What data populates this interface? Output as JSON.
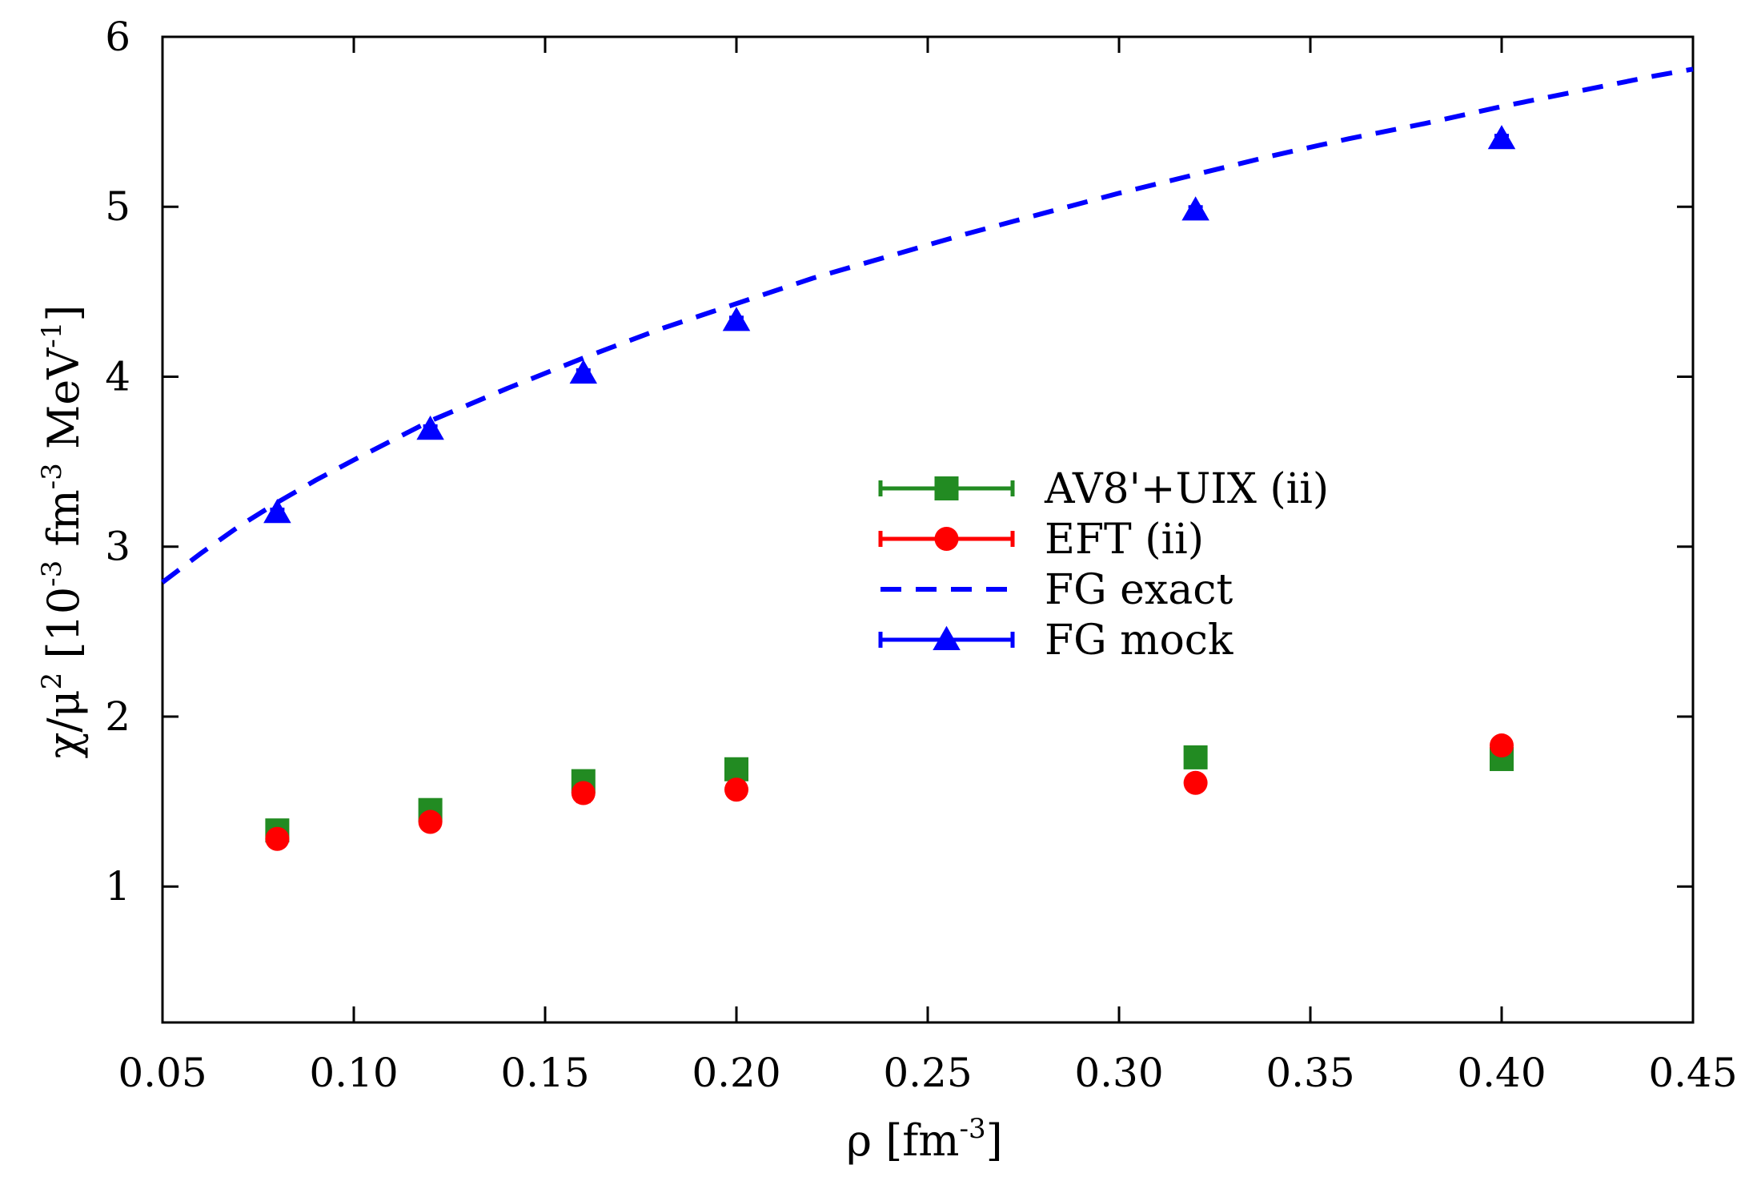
{
  "chart_data": {
    "type": "scatter",
    "title": "",
    "xlabel": {
      "main": "ρ [fm",
      "sup": "-3",
      "end": "]"
    },
    "ylabel": {
      "p1": "χ/μ",
      "s1": "2",
      "p2": " [10",
      "s2": "-3",
      "p3": " fm",
      "s3": "-3",
      "p4": " MeV",
      "s4": "-1",
      "p5": "]"
    },
    "xlim": [
      0.05,
      0.45
    ],
    "ylim": [
      0.2,
      6.0
    ],
    "x_ticks": [
      0.05,
      0.1,
      0.15,
      0.2,
      0.25,
      0.3,
      0.35,
      0.4,
      0.45
    ],
    "x_tick_labels": [
      "0.05",
      "0.10",
      "0.15",
      "0.20",
      "0.25",
      "0.30",
      "0.35",
      "0.40",
      "0.45"
    ],
    "y_ticks": [
      1,
      2,
      3,
      4,
      5,
      6
    ],
    "y_tick_labels": [
      "1",
      "2",
      "3",
      "4",
      "5",
      "6"
    ],
    "grid": false,
    "legend_position": "center-right",
    "series": [
      {
        "name": "AV8'+UIX (ii)",
        "kind": "points",
        "marker": "square",
        "color": "#228b22",
        "x": [
          0.08,
          0.12,
          0.16,
          0.2,
          0.32,
          0.4
        ],
        "y": [
          1.33,
          1.45,
          1.62,
          1.69,
          1.76,
          1.75
        ],
        "yerr": [
          0.03,
          0.03,
          0.03,
          0.03,
          0.03,
          0.03
        ]
      },
      {
        "name": "EFT (ii)",
        "kind": "points",
        "marker": "circle",
        "color": "#ff0000",
        "x": [
          0.08,
          0.12,
          0.16,
          0.2,
          0.32,
          0.4
        ],
        "y": [
          1.28,
          1.38,
          1.55,
          1.57,
          1.61,
          1.83
        ],
        "yerr": [
          0.04,
          0.03,
          0.05,
          0.02,
          0.02,
          0.02
        ]
      },
      {
        "name": "FG exact",
        "kind": "dashed-line",
        "color": "#0000ff",
        "x": [
          0.05,
          0.06,
          0.07,
          0.08,
          0.09,
          0.1,
          0.12,
          0.14,
          0.16,
          0.18,
          0.2,
          0.22,
          0.24,
          0.26,
          0.28,
          0.3,
          0.32,
          0.34,
          0.36,
          0.38,
          0.4,
          0.42,
          0.44,
          0.45
        ],
        "y": [
          2.79,
          2.96,
          3.12,
          3.26,
          3.39,
          3.51,
          3.74,
          3.93,
          4.11,
          4.28,
          4.43,
          4.58,
          4.71,
          4.84,
          4.96,
          5.08,
          5.19,
          5.3,
          5.4,
          5.49,
          5.59,
          5.68,
          5.77,
          5.81
        ]
      },
      {
        "name": "FG mock",
        "kind": "points",
        "marker": "triangle",
        "color": "#0000ff",
        "x": [
          0.08,
          0.12,
          0.16,
          0.2,
          0.32,
          0.4
        ],
        "y": [
          3.2,
          3.69,
          4.02,
          4.33,
          4.98,
          5.4
        ],
        "yerr": [
          0.02,
          0.02,
          0.02,
          0.02,
          0.02,
          0.02
        ]
      }
    ]
  }
}
